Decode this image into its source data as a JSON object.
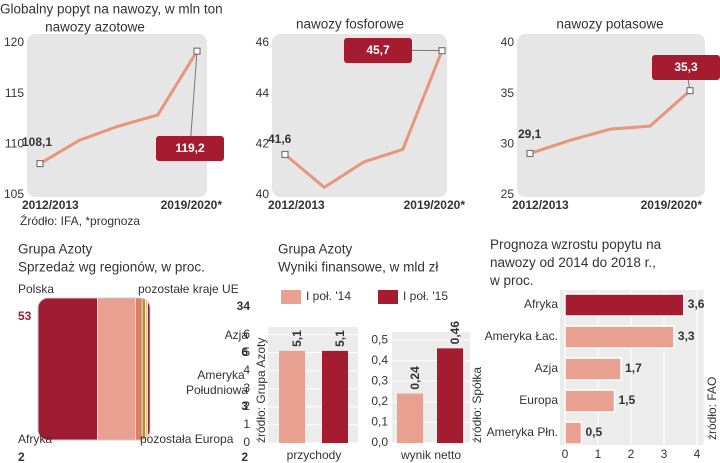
{
  "chart_data": [
    {
      "type": "line",
      "title": "Globalny popyt na nawozy, w mln ton",
      "subtitle": "nawozy azotowe",
      "categories": [
        "2012/2013",
        null,
        null,
        null,
        "2019/2020*"
      ],
      "values": [
        108.1,
        110.4,
        111.8,
        112.9,
        119.2
      ],
      "value_labels": [
        "108,1",
        null,
        null,
        null,
        "119,2"
      ],
      "color": "#e8967a",
      "highlight_color": "#a51c30",
      "ylim": [
        105,
        120.5
      ],
      "yticks": [
        105,
        110,
        115,
        120
      ],
      "source": "Źródło: IFA, *prognoza"
    },
    {
      "type": "line",
      "title": "nawozy fosforowe",
      "categories": [
        "2012/2013",
        null,
        null,
        null,
        "2019/2020*"
      ],
      "values": [
        41.6,
        40.3,
        41.3,
        41.8,
        45.7
      ],
      "value_labels": [
        "41,6",
        null,
        null,
        null,
        "45,7"
      ],
      "color": "#e8967a",
      "highlight_color": "#a51c30",
      "ylim": [
        40,
        46.2
      ],
      "yticks": [
        40,
        42,
        44,
        46
      ]
    },
    {
      "type": "line",
      "title": "nawozy potasowe",
      "categories": [
        "2012/2013",
        null,
        null,
        null,
        "2019/2020*"
      ],
      "values": [
        29.1,
        30.4,
        31.5,
        31.8,
        35.3
      ],
      "value_labels": [
        "29,1",
        null,
        null,
        null,
        "35,3"
      ],
      "color": "#e8967a",
      "highlight_color": "#a51c30",
      "ylim": [
        25,
        40.5
      ],
      "yticks": [
        25,
        30,
        35,
        40
      ]
    },
    {
      "type": "pie",
      "title": "Grupa Azoty",
      "subtitle": "Sprzedaż wg regionów, w proc.",
      "categories": [
        "Polska",
        "pozostałe kraje UE",
        "Azja",
        "Ameryka Południowa",
        "pozostała Europa",
        "Afryka"
      ],
      "values": [
        53,
        34,
        6,
        3,
        2,
        2
      ],
      "colors": [
        "#9e1b32",
        "#e8a090",
        "#d9806a",
        "#b5922f",
        "#e6c3a8",
        "#7a1526"
      ]
    },
    {
      "type": "bar",
      "title": "Grupa Azoty",
      "subtitle": "Wyniki finansowe, w mld zł",
      "categories": [
        "przychody"
      ],
      "series": [
        {
          "name": "I poł. '14",
          "color": "#e8a090",
          "values": [
            5.1
          ],
          "value_labels": [
            "5,1"
          ]
        },
        {
          "name": "I poł. '15",
          "color": "#a51c30",
          "values": [
            5.1
          ],
          "value_labels": [
            "5,1"
          ]
        }
      ],
      "ylim": [
        0,
        6.2
      ],
      "yticks": [
        0,
        1,
        2,
        3,
        4,
        5,
        6
      ],
      "source": "źródło: Grupa Azoty"
    },
    {
      "type": "bar",
      "categories": [
        "wynik netto"
      ],
      "series": [
        {
          "color": "#e8a090",
          "values": [
            0.24
          ],
          "value_labels": [
            "0,24"
          ]
        },
        {
          "color": "#a51c30",
          "values": [
            0.46
          ],
          "value_labels": [
            "0,46"
          ]
        }
      ],
      "ylim": [
        0,
        0.52
      ],
      "yticks": [
        {
          "value": 0,
          "label": "0,0"
        },
        {
          "value": 0.1,
          "label": "0,1"
        },
        {
          "value": 0.2,
          "label": "0,2"
        },
        {
          "value": 0.3,
          "label": "0,3"
        },
        {
          "value": 0.4,
          "label": "0,4"
        },
        {
          "value": 0.5,
          "label": "0,5"
        }
      ],
      "source": "źródło: Spółka"
    },
    {
      "type": "hbar",
      "title": "Prognoza wzrostu popytu na nawozy od 2014 do 2018 r., w proc.",
      "categories": [
        "Afryka",
        "Ameryka Łac.",
        "Azja",
        "Europa",
        "Ameryka Płn."
      ],
      "values": [
        3.6,
        3.3,
        1.7,
        1.5,
        0.5
      ],
      "value_labels": [
        "3,6",
        "3,3",
        "1,7",
        "1,5",
        "0,5"
      ],
      "colors": [
        "#a51c30",
        "#e8a090",
        "#e8a090",
        "#e8a090",
        "#e8a090"
      ],
      "xlim": [
        0,
        4.2
      ],
      "xticks": [
        0,
        1,
        2,
        3,
        4
      ],
      "grid": true,
      "source": "źródło: FAO"
    }
  ]
}
